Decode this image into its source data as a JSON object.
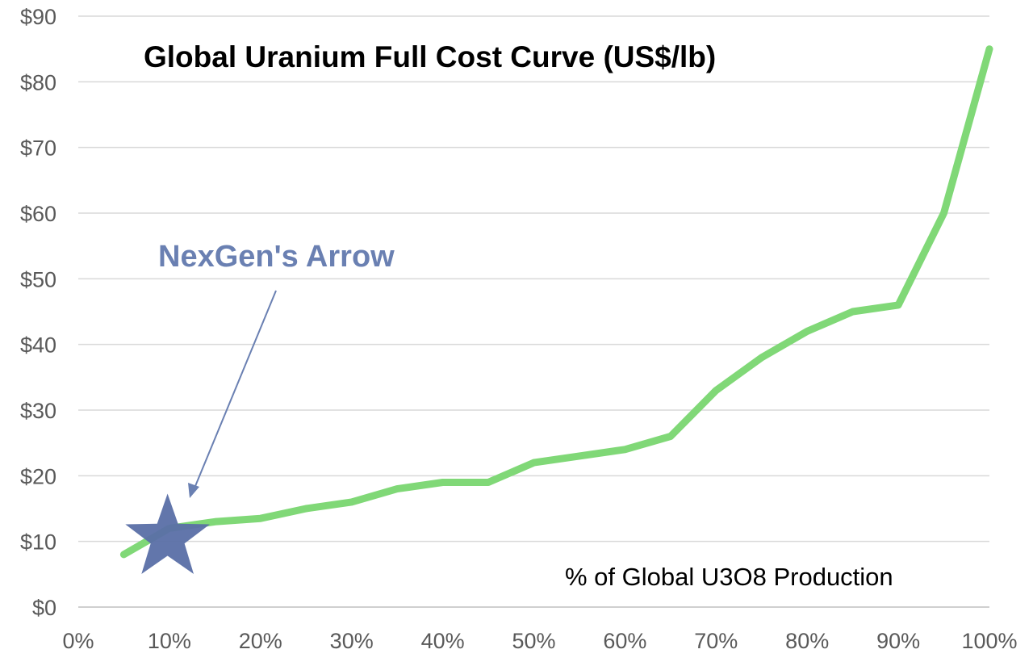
{
  "chart_data": {
    "type": "line",
    "title": "Global Uranium Full Cost Curve (US$/lb)",
    "xlabel": "% of Global U3O8 Production",
    "ylabel": "",
    "x_ticks": [
      "0%",
      "10%",
      "20%",
      "30%",
      "40%",
      "50%",
      "60%",
      "70%",
      "80%",
      "90%",
      "100%"
    ],
    "y_ticks": [
      "$0",
      "$10",
      "$20",
      "$30",
      "$40",
      "$50",
      "$60",
      "$70",
      "$80",
      "$90"
    ],
    "xlim": [
      0,
      100
    ],
    "ylim": [
      0,
      90
    ],
    "grid": "horizontal",
    "series": [
      {
        "color": "#80d877",
        "x": [
          5,
          10,
          15,
          20,
          25,
          30,
          35,
          40,
          45,
          50,
          55,
          60,
          65,
          70,
          75,
          80,
          85,
          90,
          95,
          100
        ],
        "y": [
          8,
          12,
          13,
          13.5,
          15,
          16,
          18,
          19,
          19,
          22,
          23,
          24,
          26,
          33,
          38,
          42,
          45,
          46,
          60,
          85
        ]
      }
    ],
    "annotations": [
      {
        "text": "NexGen's Arrow",
        "color": "#6a80b2",
        "marker": "star",
        "marker_x": 9.8,
        "marker_y": 11
      }
    ]
  }
}
